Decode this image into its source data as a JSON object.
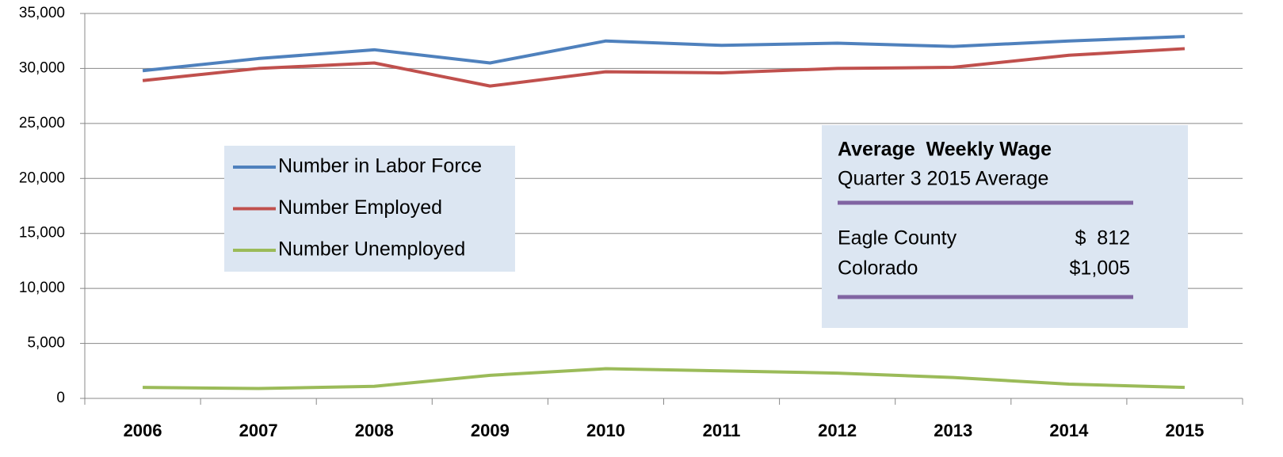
{
  "chart_data": {
    "type": "line",
    "categories": [
      "2006",
      "2007",
      "2008",
      "2009",
      "2010",
      "2011",
      "2012",
      "2013",
      "2014",
      "2015"
    ],
    "series": [
      {
        "name": "Number in Labor Force",
        "color": "#4f81bd",
        "values": [
          29800,
          30900,
          31700,
          30500,
          32500,
          32100,
          32300,
          32000,
          32500,
          32900
        ]
      },
      {
        "name": "Number Employed",
        "color": "#c0504d",
        "values": [
          28900,
          30000,
          30500,
          28400,
          29700,
          29600,
          30000,
          30100,
          31200,
          31800
        ]
      },
      {
        "name": "Number Unemployed",
        "color": "#9bbb59",
        "values": [
          1000,
          900,
          1100,
          2100,
          2700,
          2500,
          2300,
          1900,
          1300,
          1000
        ]
      }
    ],
    "ylim": [
      0,
      35000
    ],
    "yticks": [
      0,
      {
        "value": 5000,
        "label": "5,000"
      },
      {
        "value": 10000,
        "label": "10,000"
      },
      {
        "value": 15000,
        "label": "15,000"
      },
      {
        "value": 20000,
        "label": "20,000"
      },
      {
        "value": 25000,
        "label": "25,000"
      },
      {
        "value": 30000,
        "label": "30,000"
      },
      {
        "value": 35000,
        "label": "35,000"
      }
    ],
    "grid": true,
    "annotation": {
      "title": "Average  Weekly Wage",
      "subtitle": "Quarter 3 2015 Average",
      "rows": [
        [
          "Eagle County",
          "$  812"
        ],
        [
          "Colorado",
          "$1,005"
        ]
      ]
    }
  }
}
